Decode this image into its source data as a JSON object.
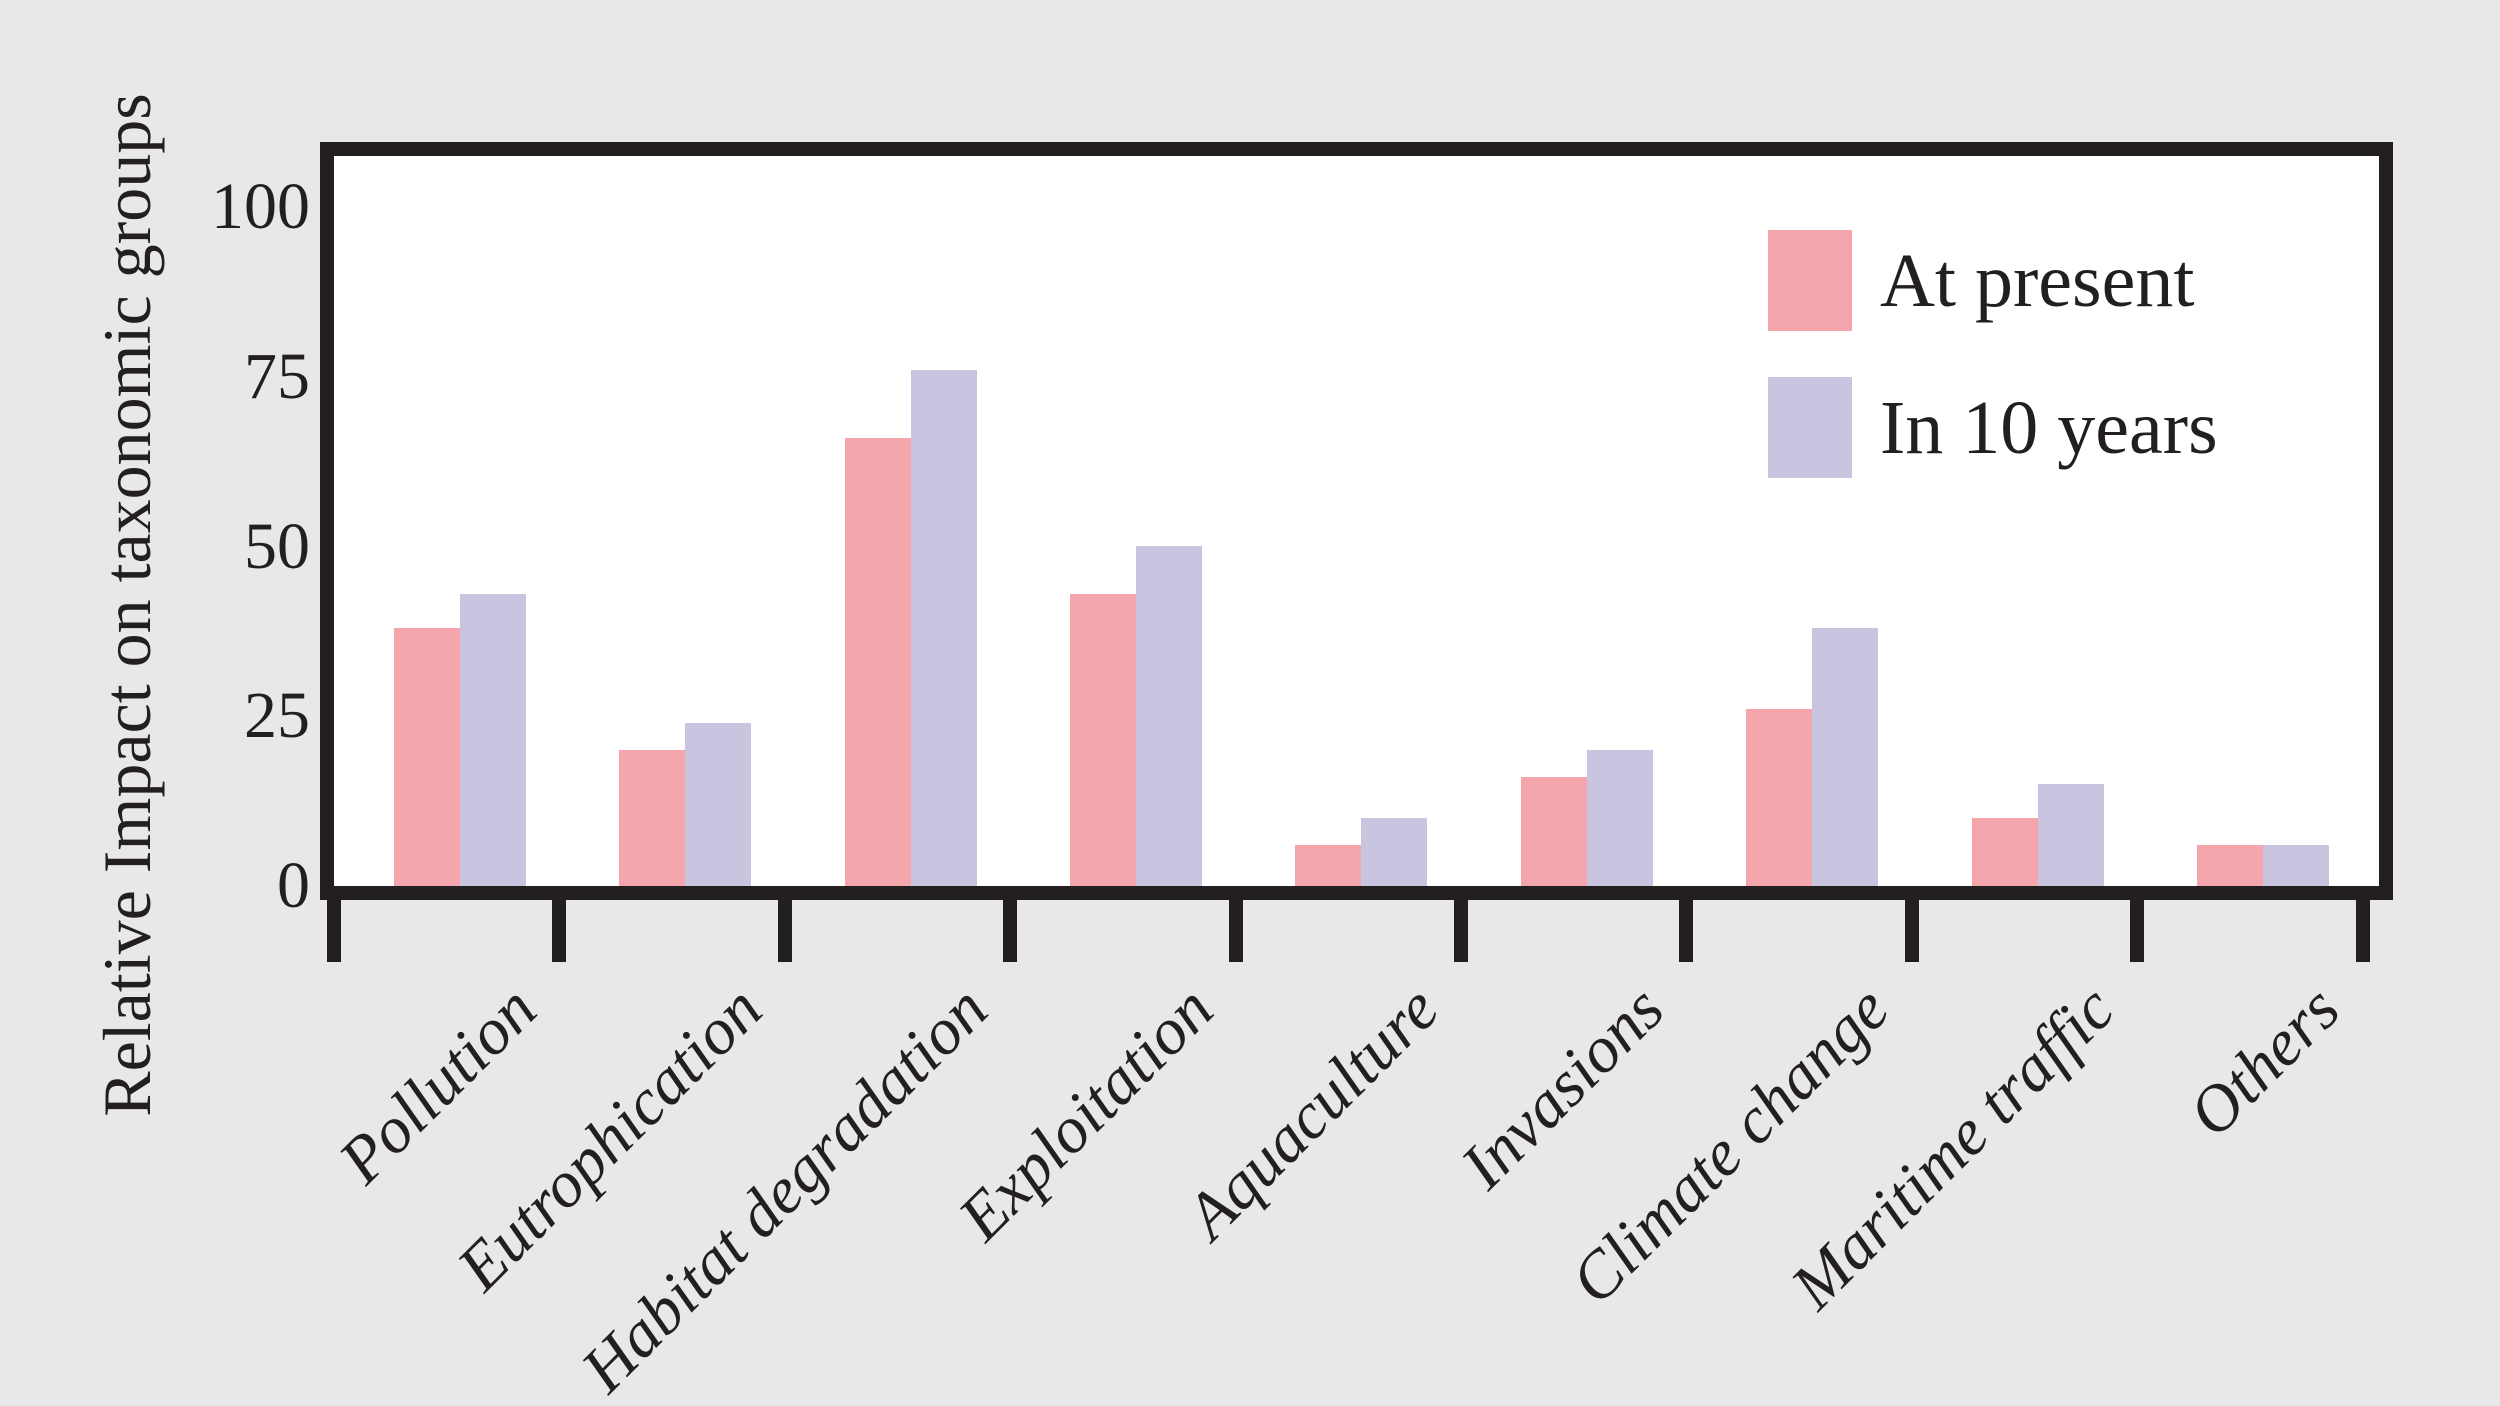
{
  "figure": {
    "background_color": "#e8e7e9",
    "plot_background_color": "#ffffff",
    "frame_color": "#231f20",
    "text_color": "#231f20"
  },
  "chart_data": {
    "type": "bar",
    "title": "",
    "xlabel": "",
    "ylabel": "Relative Impact on taxonomic groups",
    "ylim": [
      0,
      100
    ],
    "yticks": [
      "0",
      "25",
      "50",
      "75",
      "100"
    ],
    "ytick_values": [
      0,
      25,
      50,
      75,
      100
    ],
    "grid": false,
    "legend_position": "top-right",
    "categories": [
      "Pollution",
      "Eutrophication",
      "Habitat degradation",
      "Exploitation",
      "Aquaculture",
      "Invasions",
      "Climate change",
      "Maritime traffic",
      "Others"
    ],
    "series": [
      {
        "name": "At present",
        "color": "#f4a6ac",
        "values": [
          38,
          20,
          66,
          43,
          6,
          16,
          26,
          10,
          6
        ]
      },
      {
        "name": "In 10 years",
        "color": "#c9c5e1",
        "values": [
          43,
          24,
          76,
          50,
          10,
          20,
          38,
          15,
          6
        ]
      }
    ]
  }
}
